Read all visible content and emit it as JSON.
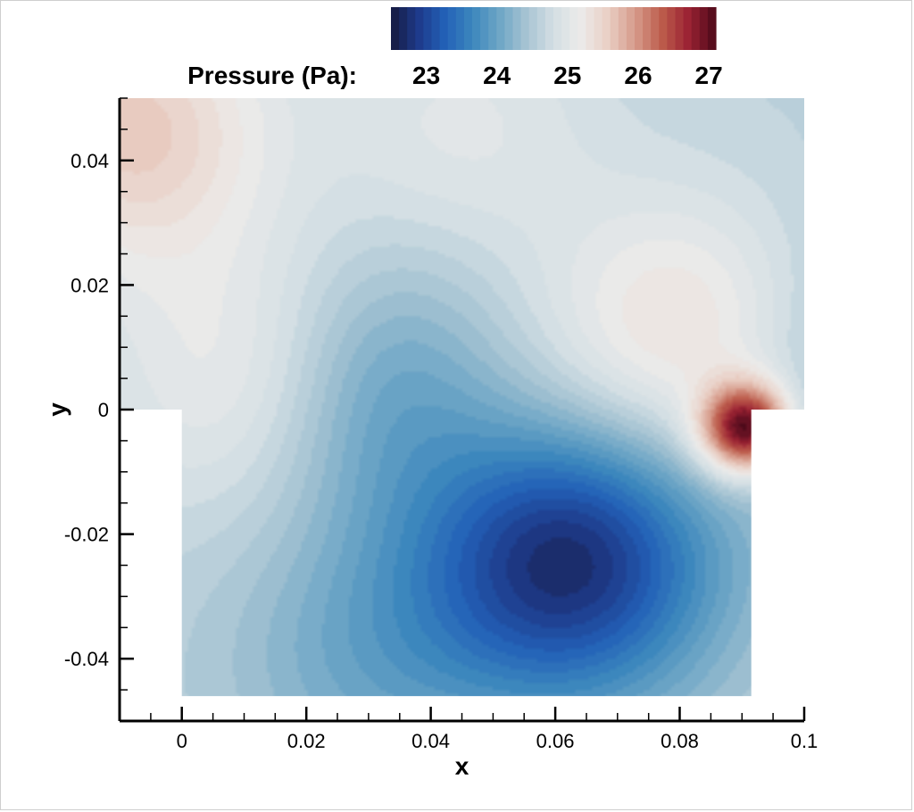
{
  "chart_data": {
    "type": "heatmap",
    "xlabel": "x",
    "ylabel": "y",
    "xlim": [
      -0.01,
      0.1
    ],
    "ylim": [
      -0.05,
      0.05
    ],
    "x_ticks": [
      0,
      0.02,
      0.04,
      0.06,
      0.08,
      0.1
    ],
    "x_tick_labels": [
      "0",
      "0.02",
      "0.04",
      "0.06",
      "0.08",
      "0.1"
    ],
    "y_ticks": [
      0.04,
      0.02,
      0,
      -0.02,
      -0.04
    ],
    "y_tick_labels": [
      "0.04",
      "0.02",
      "0",
      "-0.02",
      "-0.04"
    ],
    "colorbar": {
      "label": "Pressure (Pa):",
      "range": [
        22.5,
        27.1
      ],
      "ticks": [
        23,
        24,
        25,
        26,
        27
      ],
      "tick_labels": [
        "23",
        "24",
        "25",
        "26",
        "27"
      ],
      "placement": "top",
      "colormap": [
        "#161a3e",
        "#1e3a8a",
        "#2361b8",
        "#3c87bd",
        "#6ea6c6",
        "#a7c4d3",
        "#d4dfe4",
        "#ecebea",
        "#ead0c6",
        "#d79c8c",
        "#bd5d4c",
        "#9b2233",
        "#4d0a1a"
      ]
    },
    "domain_boundary": [
      [
        0,
        -0.046
      ],
      [
        0,
        0
      ],
      [
        -0.01,
        0
      ],
      [
        -0.01,
        0.05
      ],
      [
        0.1,
        0.05
      ],
      [
        0.1,
        0
      ],
      [
        0.0915,
        0
      ],
      [
        0.0915,
        -0.046
      ]
    ],
    "background_pressure": 24.6,
    "field_features": [
      {
        "kind": "low",
        "x": 0.062,
        "y": -0.023,
        "pressure": 22.6
      },
      {
        "kind": "low",
        "x": 0.033,
        "y": 0.002,
        "pressure": 23.6
      },
      {
        "kind": "high",
        "x": 0.0905,
        "y": -0.003,
        "pressure": 27.0
      },
      {
        "kind": "high",
        "x": -0.008,
        "y": 0.045,
        "pressure": 25.6
      },
      {
        "kind": "high",
        "x": 0.083,
        "y": 0.01,
        "pressure": 25.7
      },
      {
        "kind": "high",
        "x": 0.012,
        "y": 0.005,
        "pressure": 25.3
      },
      {
        "kind": "low",
        "x": 0.099,
        "y": 0.007,
        "pressure": 24.0
      },
      {
        "kind": "low",
        "x": 0.03,
        "y": -0.04,
        "pressure": 24.1
      },
      {
        "kind": "high",
        "x": 0.049,
        "y": -0.004,
        "pressure": 25.1
      },
      {
        "kind": "high",
        "x": 0.045,
        "y": 0.045,
        "pressure": 25.0
      }
    ]
  }
}
